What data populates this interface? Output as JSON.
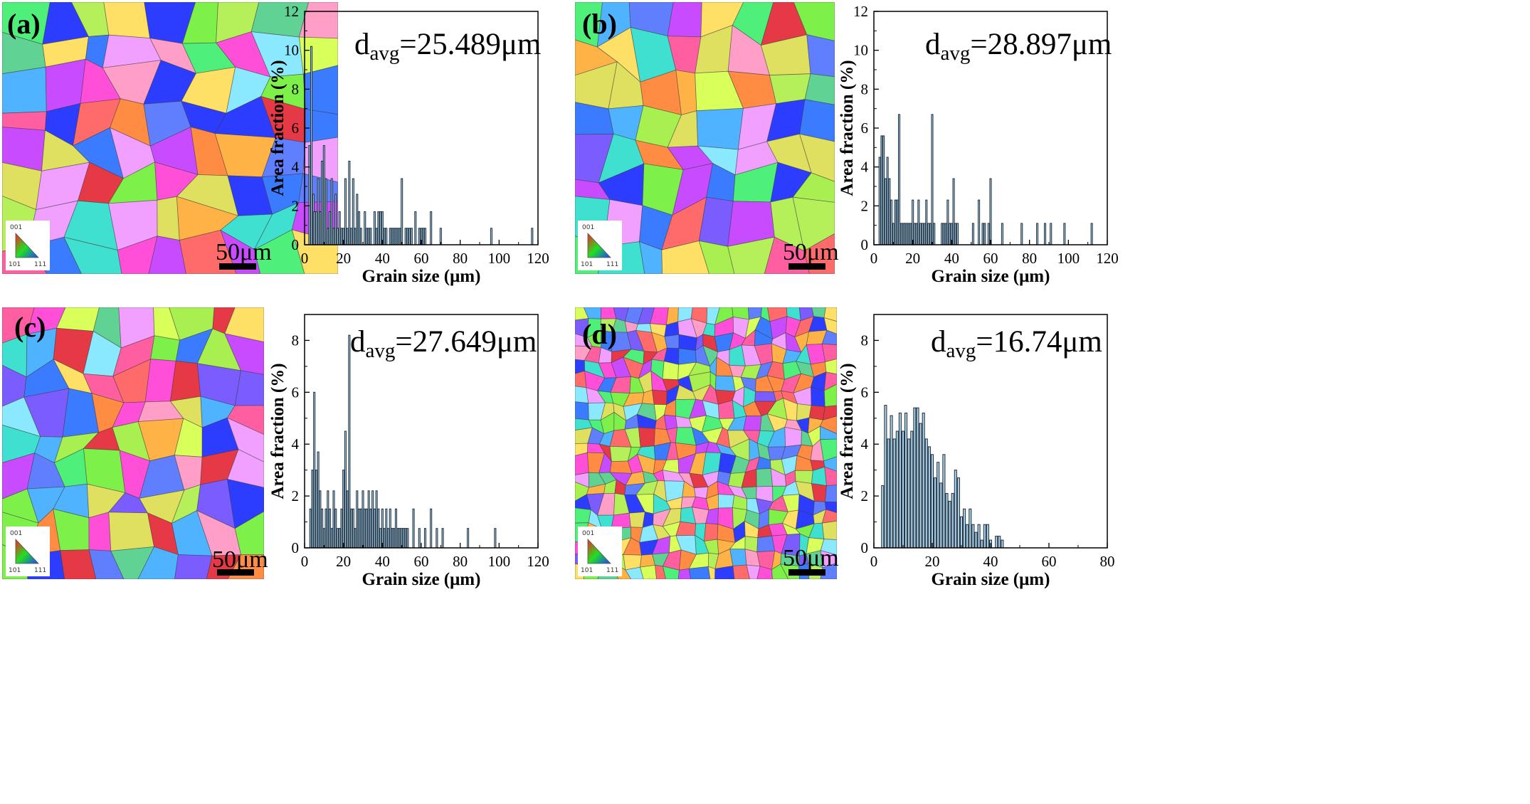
{
  "panels": [
    {
      "label": "(a)",
      "scale": "50μm",
      "annotation_main": "d",
      "annotation_sub": "avg",
      "annotation_value": "=25.489μm"
    },
    {
      "label": "(b)",
      "scale": "50μm",
      "annotation_main": "d",
      "annotation_sub": "avg",
      "annotation_value": "=28.897μm"
    },
    {
      "label": "(c)",
      "scale": "50μm",
      "annotation_main": "d",
      "annotation_sub": "avg",
      "annotation_value": "=27.649μm"
    },
    {
      "label": "(d)",
      "scale": "50μm",
      "annotation_main": "d",
      "annotation_sub": "avg",
      "annotation_value": "=16.74μm"
    }
  ],
  "ipf_key": {
    "top": "001",
    "left": "101",
    "right": "111"
  },
  "colors": {
    "bar_fill": "#a9d1ea",
    "bar_stroke": "#1f2d3a"
  },
  "chart_data": [
    {
      "type": "bar",
      "xlabel": "Grain size (μm)",
      "ylabel": "Area fraction (%)",
      "xlim": [
        0,
        120
      ],
      "ylim": [
        0,
        12
      ],
      "xticks": [
        0,
        20,
        40,
        60,
        80,
        100,
        120
      ],
      "yticks": [
        0,
        2,
        4,
        6,
        8,
        10,
        12
      ],
      "annotation": "davg=25.489μm",
      "x": [
        2.5,
        3.5,
        4.5,
        5,
        6,
        7,
        8,
        9,
        10,
        11,
        12,
        13,
        14,
        15,
        16,
        17,
        18,
        19,
        20,
        21,
        22,
        23,
        24,
        25,
        26,
        27,
        28,
        29,
        31,
        32,
        33,
        34,
        36,
        37,
        38,
        39,
        40,
        41,
        42,
        44,
        45,
        46,
        47,
        48,
        49,
        50,
        52,
        53,
        54,
        55,
        57,
        59,
        60,
        61,
        62,
        65,
        70,
        96,
        117
      ],
      "y": [
        5.1,
        10.2,
        2.6,
        1.7,
        1.7,
        3.4,
        1.7,
        4.3,
        5.1,
        3.4,
        0.85,
        1.7,
        3.4,
        0.85,
        2.6,
        0.85,
        1.7,
        0.85,
        0.85,
        3.4,
        0.85,
        4.3,
        0.85,
        3.4,
        0.85,
        2.6,
        1.7,
        0.85,
        1.7,
        0.85,
        0.85,
        0.85,
        1.7,
        0.85,
        1.7,
        1.7,
        1.7,
        0.85,
        0.85,
        0.85,
        0.85,
        0.85,
        0.85,
        0.85,
        0.85,
        3.4,
        0.85,
        0.85,
        0.85,
        0.85,
        1.7,
        0.85,
        0.85,
        0.85,
        0.85,
        1.7,
        0.85,
        0.85,
        0.85
      ]
    },
    {
      "type": "bar",
      "xlabel": "Grain size (μm)",
      "ylabel": "Area fraction (%)",
      "xlim": [
        0,
        120
      ],
      "ylim": [
        0,
        12
      ],
      "xticks": [
        0,
        20,
        40,
        60,
        80,
        100,
        120
      ],
      "yticks": [
        0,
        2,
        4,
        6,
        8,
        10,
        12
      ],
      "annotation": "davg=28.897μm",
      "x": [
        3,
        4,
        5,
        6,
        7,
        8,
        9,
        10,
        11,
        12,
        13,
        14,
        15,
        16,
        17,
        18,
        19,
        20,
        21,
        22,
        23,
        24,
        25,
        26,
        27,
        28,
        29,
        30,
        31,
        35,
        36,
        37,
        38,
        39,
        40,
        41,
        42,
        43,
        51,
        54,
        56,
        57,
        59,
        60,
        66,
        76,
        84,
        88,
        91,
        98,
        112
      ],
      "y": [
        4.5,
        5.6,
        5.6,
        3.4,
        4.5,
        3.4,
        2.3,
        1.1,
        2.3,
        2.3,
        6.7,
        1.1,
        1.1,
        1.1,
        1.1,
        1.1,
        1.1,
        2.3,
        1.1,
        1.1,
        2.3,
        1.1,
        1.1,
        1.1,
        2.3,
        1.1,
        1.1,
        6.7,
        1.1,
        1.1,
        1.1,
        1.1,
        2.3,
        1.1,
        1.1,
        3.4,
        1.1,
        1.1,
        1.1,
        2.3,
        1.1,
        1.1,
        1.1,
        3.4,
        1.1,
        1.1,
        1.1,
        1.1,
        1.1,
        1.1,
        1.1
      ]
    },
    {
      "type": "bar",
      "xlabel": "Grain size (μm)",
      "ylabel": "Area fraction (%)",
      "xlim": [
        0,
        120
      ],
      "ylim": [
        0,
        9
      ],
      "xticks": [
        0,
        20,
        40,
        60,
        80,
        100,
        120
      ],
      "yticks": [
        0,
        2,
        4,
        6,
        8
      ],
      "annotation": "davg=27.649μm",
      "x": [
        3,
        4,
        5,
        6,
        7,
        8,
        9,
        10,
        11,
        12,
        13,
        14,
        15,
        16,
        17,
        18,
        19,
        20,
        21,
        22,
        23,
        24,
        25,
        26,
        27,
        28,
        29,
        30,
        31,
        32,
        33,
        34,
        35,
        36,
        37,
        38,
        39,
        40,
        41,
        42,
        43,
        44,
        45,
        46,
        47,
        48,
        49,
        50,
        51,
        52,
        53,
        56,
        59,
        62,
        65,
        68,
        71,
        84,
        98
      ],
      "y": [
        1.5,
        3.0,
        6.0,
        3.0,
        3.7,
        2.2,
        1.5,
        0.75,
        1.5,
        2.2,
        1.5,
        0.75,
        2.2,
        1.5,
        0.75,
        0.75,
        1.5,
        3.0,
        4.5,
        2.2,
        8.2,
        1.5,
        1.5,
        0.75,
        2.2,
        1.5,
        1.5,
        2.2,
        1.5,
        1.5,
        2.2,
        1.5,
        2.2,
        1.5,
        2.2,
        1.5,
        0.75,
        1.5,
        0.75,
        1.5,
        0.75,
        1.5,
        0.75,
        0.75,
        1.5,
        0.75,
        0.75,
        0.75,
        0.75,
        0.75,
        0.75,
        1.5,
        0.75,
        0.75,
        1.5,
        0.75,
        0.75,
        0.75,
        0.75
      ]
    },
    {
      "type": "bar",
      "xlabel": "Grain size (μm)",
      "ylabel": "Area fraction (%)",
      "xlim": [
        0,
        80
      ],
      "ylim": [
        0,
        9
      ],
      "xticks": [
        0,
        20,
        40,
        60,
        80
      ],
      "yticks": [
        0,
        2,
        4,
        6,
        8
      ],
      "annotation": "davg=16.74μm",
      "x": [
        3,
        4,
        5,
        6,
        7,
        8,
        9,
        10,
        11,
        12,
        13,
        14,
        15,
        16,
        17,
        18,
        19,
        20,
        21,
        22,
        23,
        24,
        25,
        26,
        27,
        28,
        29,
        30,
        31,
        32,
        33,
        34,
        35,
        36,
        37,
        38,
        39,
        40,
        42,
        43,
        44
      ],
      "y": [
        2.4,
        5.5,
        4.2,
        5.1,
        4.2,
        4.5,
        5.2,
        4.5,
        5.2,
        4.2,
        4.5,
        5.4,
        5.4,
        4.8,
        5.2,
        4.2,
        3.9,
        3.6,
        2.7,
        3.3,
        2.5,
        3.6,
        2.1,
        1.8,
        2.1,
        3.0,
        2.7,
        1.2,
        1.5,
        0.9,
        1.5,
        0.9,
        0.6,
        0.9,
        0.3,
        0.9,
        0.9,
        0.3,
        0.45,
        0.45,
        0.3
      ]
    }
  ]
}
